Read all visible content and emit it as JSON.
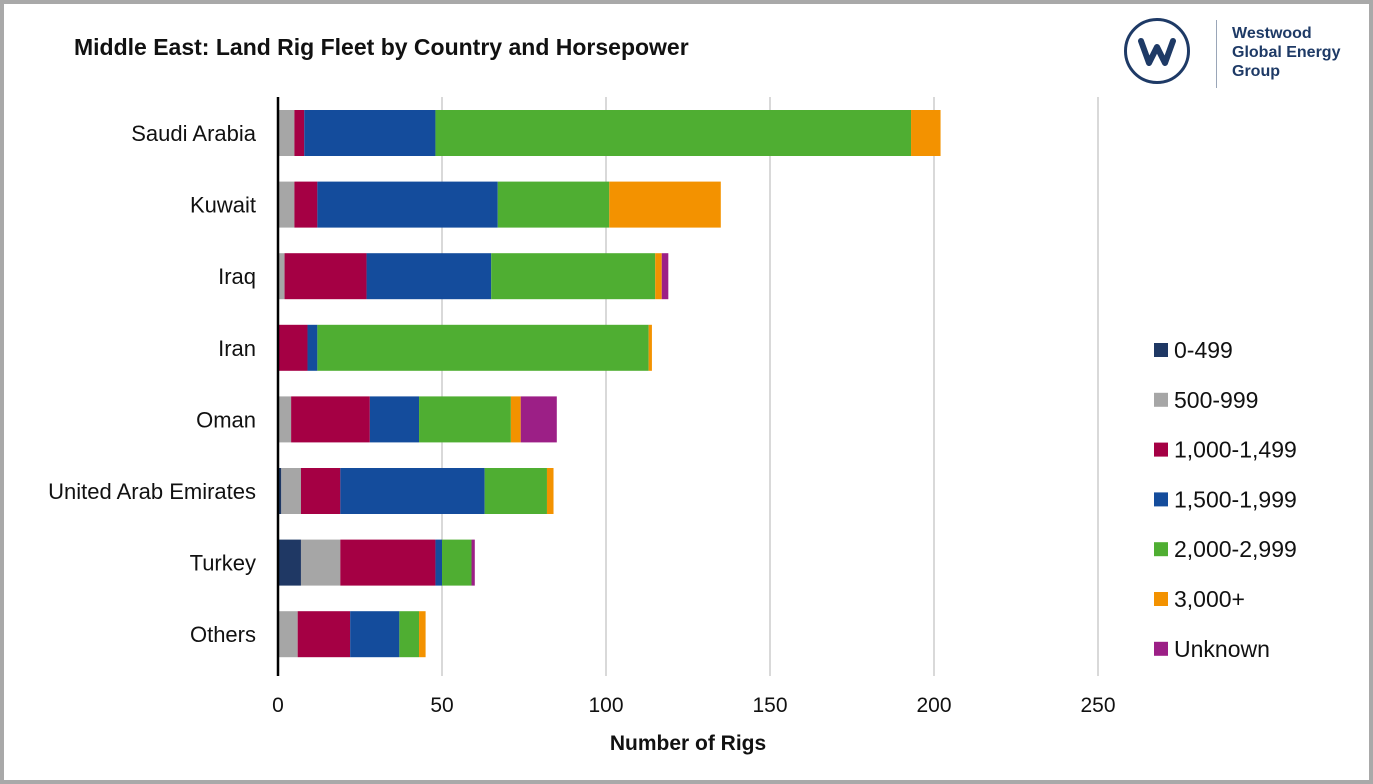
{
  "title": "Middle East: Land Rig Fleet by Country and Horsepower",
  "logo": {
    "lines": [
      "Westwood",
      "Global Energy",
      "Group"
    ],
    "icon": "westwood-w-logo-icon",
    "color": "#1e3a66"
  },
  "chart_data": {
    "type": "bar",
    "orientation": "horizontal",
    "stacked": true,
    "title": "Middle East: Land Rig Fleet by Country and Horsepower",
    "xlabel": "Number of Rigs",
    "ylabel": "",
    "xlim": [
      0,
      250
    ],
    "xticks": [
      0,
      50,
      100,
      150,
      200,
      250
    ],
    "grid": "vertical",
    "legend_position": "right",
    "categories": [
      "Saudi Arabia",
      "Kuwait",
      "Iraq",
      "Iran",
      "Oman",
      "United Arab Emirates",
      "Turkey",
      "Others"
    ],
    "series": [
      {
        "name": "0-499",
        "color": "#1f3864",
        "values": [
          0,
          0,
          0,
          0,
          0,
          1,
          7,
          0
        ]
      },
      {
        "name": "500-999",
        "color": "#a6a6a6",
        "values": [
          5,
          5,
          2,
          0,
          4,
          6,
          12,
          6
        ]
      },
      {
        "name": "1,000-1,499",
        "color": "#a50044",
        "values": [
          3,
          7,
          25,
          9,
          24,
          12,
          29,
          16
        ]
      },
      {
        "name": "1,500-1,999",
        "color": "#144c9c",
        "values": [
          40,
          55,
          38,
          3,
          15,
          44,
          2,
          15
        ]
      },
      {
        "name": "2,000-2,999",
        "color": "#4fae32",
        "values": [
          145,
          34,
          50,
          101,
          28,
          19,
          9,
          6
        ]
      },
      {
        "name": "3,000+",
        "color": "#f39200",
        "values": [
          9,
          34,
          2,
          1,
          3,
          2,
          0,
          2
        ]
      },
      {
        "name": "Unknown",
        "color": "#9c1f86",
        "values": [
          0,
          0,
          2,
          0,
          11,
          0,
          1,
          0
        ]
      }
    ]
  }
}
